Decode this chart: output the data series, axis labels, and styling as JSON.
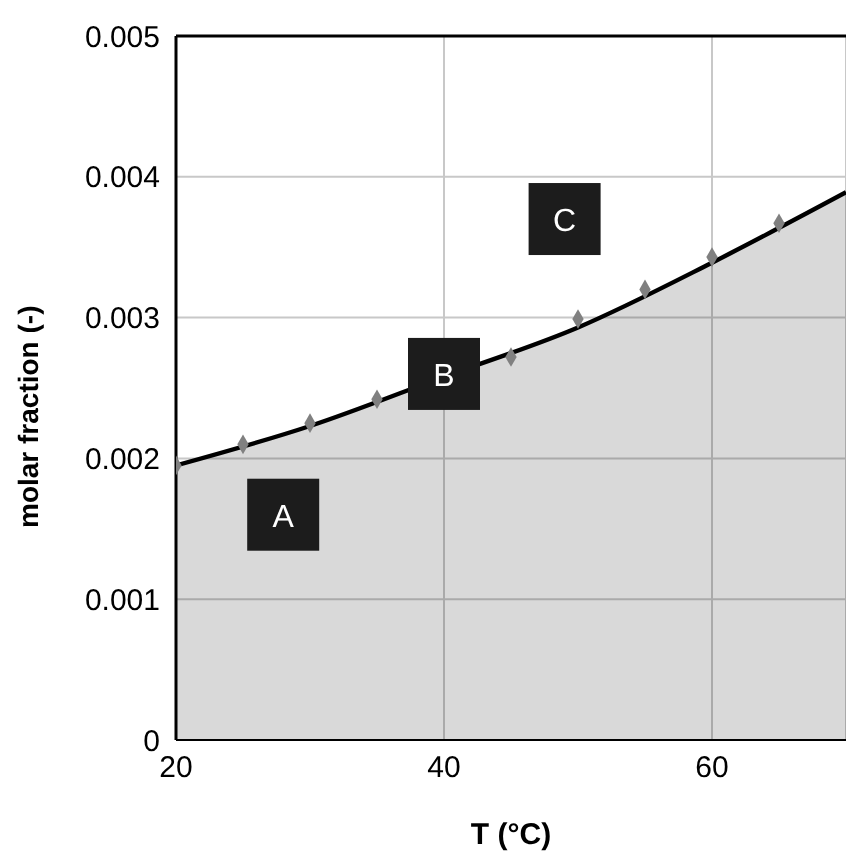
{
  "chart_data": {
    "type": "area",
    "xlabel": "T (°C)",
    "ylabel": "molar fraction (-)",
    "xlim": [
      20,
      70
    ],
    "xticks": [
      20,
      40,
      60
    ],
    "ylim": [
      0,
      0.005
    ],
    "yticks": [
      0,
      0.001,
      0.002,
      0.003,
      0.004,
      0.005
    ],
    "grid": true,
    "series": [
      {
        "color": "#000000",
        "x": [
          20,
          30,
          40,
          50,
          60,
          70
        ],
        "values": [
          0.00195,
          0.00223,
          0.00258,
          0.00293,
          0.00339,
          0.00389
        ]
      },
      {
        "type": "scatter",
        "color": "#808080",
        "marker": "diamond",
        "x": [
          20,
          25,
          30,
          35,
          40,
          45,
          50,
          55,
          60,
          65
        ],
        "values": [
          0.00195,
          0.0021,
          0.00225,
          0.00242,
          null,
          0.00272,
          0.00299,
          0.0032,
          0.00343,
          0.00367
        ]
      }
    ],
    "annotations": [
      {
        "text": "A",
        "x": 28,
        "y": 0.0016
      },
      {
        "text": "B",
        "x": 40,
        "y": 0.0026
      },
      {
        "text": "C",
        "x": 49,
        "y": 0.0037
      }
    ]
  }
}
